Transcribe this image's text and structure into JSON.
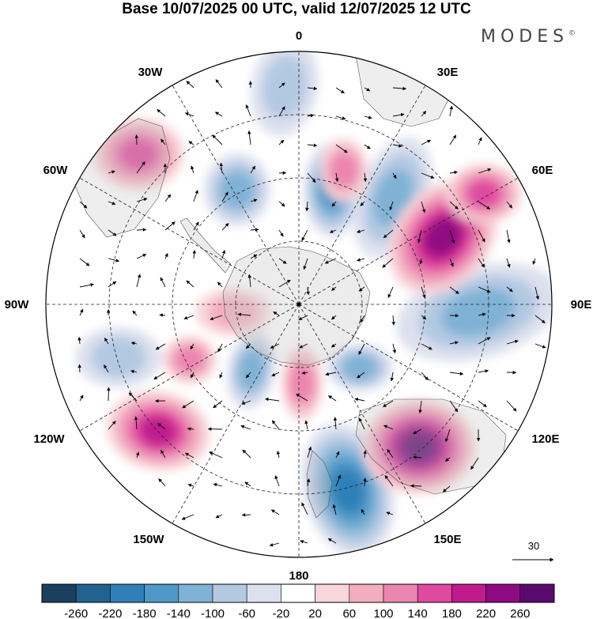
{
  "title": "Base 10/07/2025 00 UTC, valid 12/07/2025 12 UTC",
  "brand": {
    "name": "MODES",
    "mark": "©"
  },
  "longitude_labels": [
    {
      "id": "lon-0",
      "text": "0"
    },
    {
      "id": "lon-30e",
      "text": "30E"
    },
    {
      "id": "lon-60e",
      "text": "60E"
    },
    {
      "id": "lon-90e",
      "text": "90E"
    },
    {
      "id": "lon-120e",
      "text": "120E"
    },
    {
      "id": "lon-150e",
      "text": "150E"
    },
    {
      "id": "lon-180",
      "text": "180"
    },
    {
      "id": "lon-150w",
      "text": "150W"
    },
    {
      "id": "lon-120w",
      "text": "120W"
    },
    {
      "id": "lon-90w",
      "text": "90W"
    },
    {
      "id": "lon-60w",
      "text": "60W"
    },
    {
      "id": "lon-30w",
      "text": "30W"
    }
  ],
  "vector_reference": {
    "value": "30"
  },
  "colorbar": {
    "ticks": [
      "-260",
      "-220",
      "-180",
      "-140",
      "-100",
      "-60",
      "-20",
      "20",
      "60",
      "100",
      "140",
      "180",
      "220",
      "260"
    ],
    "colors": [
      "#1b3f5e",
      "#21628f",
      "#2f80b8",
      "#4f99c8",
      "#80b2d6",
      "#b3c9e2",
      "#dde0ee",
      "#ffffff",
      "#f8d6da",
      "#f3adc0",
      "#ec85b0",
      "#df4aa0",
      "#c01a8c",
      "#8e0a82",
      "#5a0a6e"
    ]
  },
  "anomaly_centers": [
    {
      "sign": "negative",
      "level": 1
    },
    {
      "sign": "negative",
      "level": 2
    },
    {
      "sign": "negative",
      "level": 2
    },
    {
      "sign": "negative",
      "level": 3
    },
    {
      "sign": "negative",
      "level": 2
    },
    {
      "sign": "negative",
      "level": 2
    },
    {
      "sign": "negative",
      "level": 4
    },
    {
      "sign": "negative",
      "level": 2
    },
    {
      "sign": "negative",
      "level": 1
    },
    {
      "sign": "positive",
      "level": 3
    },
    {
      "sign": "positive",
      "level": 2
    },
    {
      "sign": "positive",
      "level": 5
    },
    {
      "sign": "positive",
      "level": 6
    },
    {
      "sign": "positive",
      "level": 4
    },
    {
      "sign": "positive",
      "level": 2
    },
    {
      "sign": "positive",
      "level": 1
    },
    {
      "sign": "positive",
      "level": 3
    },
    {
      "sign": "positive",
      "level": 2
    }
  ]
}
